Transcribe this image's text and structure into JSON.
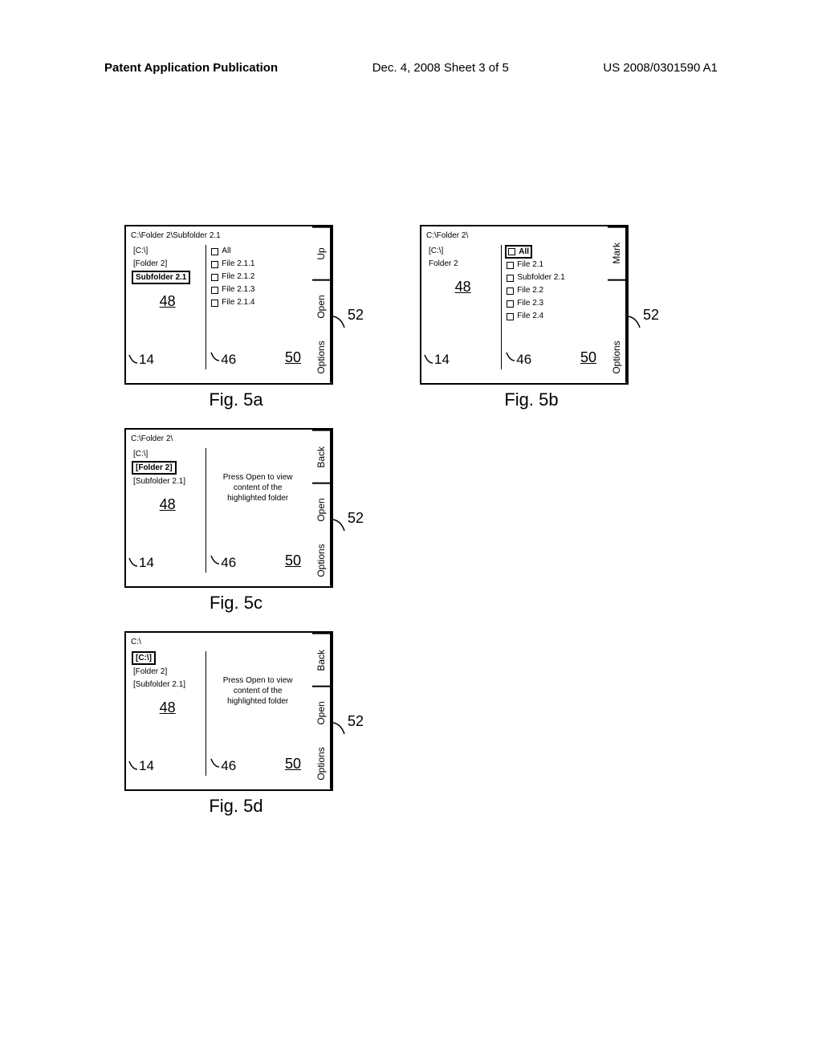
{
  "header": {
    "left": "Patent Application Publication",
    "center": "Dec. 4, 2008  Sheet 3 of 5",
    "right": "US 2008/0301590 A1"
  },
  "refs": {
    "r48": "48",
    "r14": "14",
    "r46": "46",
    "r50": "50",
    "r52": "52"
  },
  "fig5a": {
    "caption": "Fig. 5a",
    "path": "C:\\Folder 2\\Subfolder 2.1",
    "nav": [
      {
        "label": "[C:\\]",
        "highlight": false
      },
      {
        "label": "[Folder 2]",
        "highlight": false
      },
      {
        "label": "Subfolder 2.1",
        "highlight": true
      }
    ],
    "files": [
      {
        "label": "All"
      },
      {
        "label": "File 2.1.1"
      },
      {
        "label": "File 2.1.2"
      },
      {
        "label": "File 2.1.3"
      },
      {
        "label": "File 2.1.4"
      }
    ],
    "buttons": [
      "Up",
      "Open",
      "Options"
    ]
  },
  "fig5b": {
    "caption": "Fig. 5b",
    "path": "C:\\Folder 2\\",
    "nav": [
      {
        "label": "[C:\\]",
        "highlight": false
      },
      {
        "label": "Folder 2",
        "highlight": false
      }
    ],
    "files": [
      {
        "label": "All",
        "highlight": true
      },
      {
        "label": "File 2.1"
      },
      {
        "label": "Subfolder 2.1"
      },
      {
        "label": "File 2.2"
      },
      {
        "label": "File 2.3"
      },
      {
        "label": "File 2.4"
      }
    ],
    "buttons": [
      "Mark",
      "",
      "Options"
    ]
  },
  "fig5c": {
    "caption": "Fig. 5c",
    "path": "C:\\Folder 2\\",
    "nav": [
      {
        "label": "[C:\\]",
        "highlight": false
      },
      {
        "label": "[Folder 2]",
        "highlight": true
      },
      {
        "label": "[Subfolder 2.1]",
        "highlight": false
      }
    ],
    "message": "Press Open to view content of the highlighted folder",
    "buttons": [
      "Back",
      "Open",
      "Options"
    ]
  },
  "fig5d": {
    "caption": "Fig. 5d",
    "path": "C:\\",
    "nav": [
      {
        "label": "[C:\\]",
        "highlight": true
      },
      {
        "label": "[Folder 2]",
        "highlight": false
      },
      {
        "label": "[Subfolder 2.1]",
        "highlight": false
      }
    ],
    "message": "Press Open to view content of the highlighted folder",
    "buttons": [
      "Back",
      "Open",
      "Options"
    ]
  }
}
